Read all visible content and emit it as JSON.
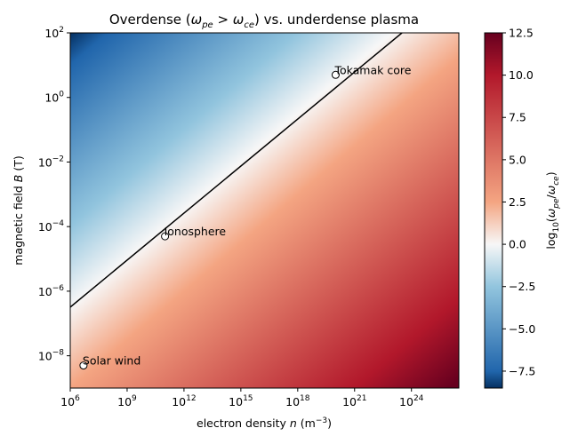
{
  "chart_data": {
    "type": "heatmap",
    "title_parts": {
      "a": "Overdense (",
      "omega_pe": "ω",
      "pe_sub": "pe",
      "gt": " > ",
      "omega_ce": "ω",
      "ce_sub": "ce",
      "b": ") vs. underdense plasma"
    },
    "xlabel_parts": {
      "a": "electron density ",
      "n": "n",
      "b": " (m",
      "exp": "−3",
      "c": ")"
    },
    "ylabel_parts": {
      "a": "magnetic field ",
      "B": "B",
      "b": " (T)"
    },
    "colorbar_label_parts": {
      "log": "log",
      "log_sub": "10",
      "open": "(",
      "omega_pe": "ω",
      "pe_sub": "pe",
      "slash": "/",
      "omega_ce": "ω",
      "ce_sub": "ce",
      "close": ")"
    },
    "x_scale": "log",
    "y_scale": "log",
    "xlim": [
      1000000.0,
      3.16e+26
    ],
    "ylim": [
      1e-09,
      100.0
    ],
    "x_ticks": [
      {
        "base": "10",
        "exp": "6",
        "value": 1000000.0
      },
      {
        "base": "10",
        "exp": "9",
        "value": 1000000000.0
      },
      {
        "base": "10",
        "exp": "12",
        "value": 1000000000000.0
      },
      {
        "base": "10",
        "exp": "15",
        "value": 1000000000000000.0
      },
      {
        "base": "10",
        "exp": "18",
        "value": 1e+18
      },
      {
        "base": "10",
        "exp": "21",
        "value": 1e+21
      },
      {
        "base": "10",
        "exp": "24",
        "value": 1e+24
      }
    ],
    "y_ticks": [
      {
        "base": "10",
        "exp": "−8",
        "value": 1e-08
      },
      {
        "base": "10",
        "exp": "−6",
        "value": 1e-06
      },
      {
        "base": "10",
        "exp": "−4",
        "value": 0.0001
      },
      {
        "base": "10",
        "exp": "−2",
        "value": 0.01
      },
      {
        "base": "10",
        "exp": "0",
        "value": 1
      },
      {
        "base": "10",
        "exp": "2",
        "value": 100
      }
    ],
    "colormap": "RdBu_r",
    "color_range": [
      -8.5,
      12.5
    ],
    "colorbar_ticks": [
      {
        "label": "12.5",
        "value": 12.5
      },
      {
        "label": "10.0",
        "value": 10.0
      },
      {
        "label": "7.5",
        "value": 7.5
      },
      {
        "label": "5.0",
        "value": 5.0
      },
      {
        "label": "2.5",
        "value": 2.5
      },
      {
        "label": "0.0",
        "value": 0.0
      },
      {
        "label": "−2.5",
        "value": -2.5
      },
      {
        "label": "−5.0",
        "value": -5.0
      },
      {
        "label": "−7.5",
        "value": -7.5
      }
    ],
    "boundary_line": {
      "color": "#000000",
      "points": [
        {
          "x": 1000000.0,
          "y": 3.2e-07
        },
        {
          "x": 3.16e+23,
          "y": 100
        }
      ]
    },
    "points": [
      {
        "label": "Solar wind",
        "x": 5000000.0,
        "y": 5e-09
      },
      {
        "label": "Ionosphere",
        "x": 100000000000.0,
        "y": 5e-05
      },
      {
        "label": "Tokamak core",
        "x": 1e+20,
        "y": 5
      }
    ],
    "colors": {
      "blue_dark": "#053061",
      "blue_mid": "#2166ac",
      "blue_light": "#92c5de",
      "neutral": "#f7f7f7",
      "red_light": "#f4a582",
      "red_mid": "#b2182b",
      "red_dark": "#67001f"
    }
  }
}
